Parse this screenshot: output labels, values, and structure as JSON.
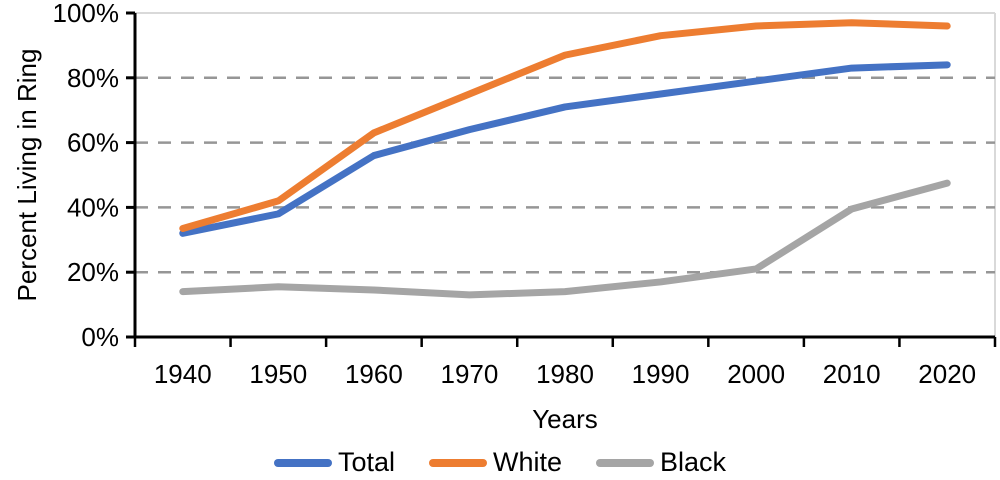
{
  "chart_data": {
    "type": "line",
    "title": "",
    "xlabel": "Years",
    "ylabel": "Percent Living in Ring",
    "x": [
      1940,
      1950,
      1960,
      1970,
      1980,
      1990,
      2000,
      2010,
      2020
    ],
    "series": [
      {
        "name": "Total",
        "color": "#4472C4",
        "values": [
          32,
          38,
          56,
          64,
          71,
          75,
          79,
          83,
          84
        ]
      },
      {
        "name": "White",
        "color": "#ED7D31",
        "values": [
          33.5,
          42,
          63,
          75,
          87,
          93,
          96,
          97,
          96
        ]
      },
      {
        "name": "Black",
        "color": "#A5A5A5",
        "values": [
          14,
          15.5,
          14.5,
          13,
          14,
          17,
          21,
          39.5,
          47.5
        ]
      }
    ],
    "ylim": [
      0,
      100
    ],
    "ytick_step": 20,
    "ytick_labels": [
      "0%",
      "20%",
      "40%",
      "60%",
      "80%",
      "100%"
    ],
    "grid": "horizontal-dashed",
    "legend_position": "bottom"
  },
  "style": {
    "gridline_color": "#969696",
    "plot_border_color": "#D9D9D9",
    "axis_color": "#000000",
    "text_color": "#000000",
    "background": "#FFFFFF"
  }
}
